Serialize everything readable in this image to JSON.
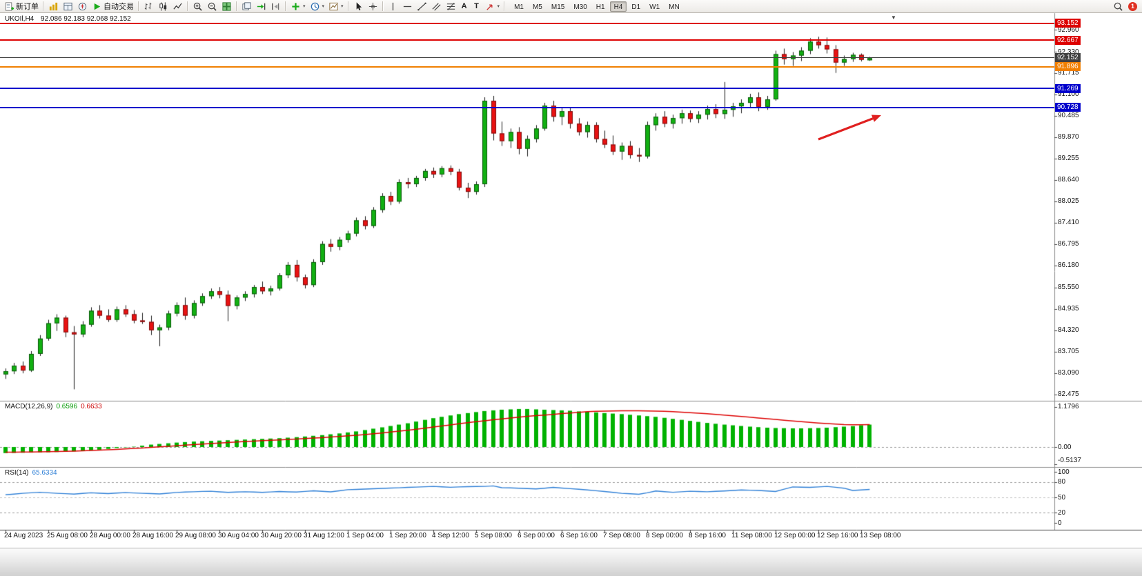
{
  "toolbar": {
    "groups": [
      [
        {
          "name": "new-order-button",
          "icon": "new-order",
          "label": "新订单"
        }
      ],
      [
        {
          "name": "market-watch-button",
          "icon": "market-watch"
        },
        {
          "name": "data-window-button",
          "icon": "data-window"
        },
        {
          "name": "navigator-button",
          "icon": "navigator"
        },
        {
          "name": "autotrading-button",
          "icon": "autotrading",
          "label": "自动交易"
        }
      ],
      [
        {
          "name": "bar-chart-button",
          "icon": "bar-chart"
        },
        {
          "name": "candlestick-chart-button",
          "icon": "candlestick"
        },
        {
          "name": "line-chart-button",
          "icon": "line-chart"
        }
      ],
      [
        {
          "name": "zoom-in-button",
          "icon": "zoom-in"
        },
        {
          "name": "zoom-out-button",
          "icon": "zoom-out"
        },
        {
          "name": "tile-windows-button",
          "icon": "tile-windows"
        }
      ],
      [
        {
          "name": "cascade-windows-button",
          "icon": "cascade-windows"
        },
        {
          "name": "auto-scroll-button",
          "icon": "auto-scroll"
        },
        {
          "name": "chart-shift-button",
          "icon": "chart-shift"
        }
      ],
      [
        {
          "name": "indicators-button",
          "icon": "indicators",
          "dropdown": true
        },
        {
          "name": "periods-button",
          "icon": "periods",
          "dropdown": true
        },
        {
          "name": "templates-button",
          "icon": "templates",
          "dropdown": true
        }
      ],
      [
        {
          "name": "cursor-button",
          "icon": "cursor"
        },
        {
          "name": "crosshair-button",
          "icon": "crosshair"
        }
      ],
      [
        {
          "name": "vertical-line-button",
          "icon": "vline"
        },
        {
          "name": "horizontal-line-button",
          "icon": "hline"
        },
        {
          "name": "trendline-button",
          "icon": "trendline"
        },
        {
          "name": "equidistant-channel-button",
          "icon": "channel"
        },
        {
          "name": "fibonacci-button",
          "icon": "fibonacci"
        },
        {
          "name": "text-button",
          "letter": "A"
        },
        {
          "name": "label-button",
          "letter": "T"
        },
        {
          "name": "arrows-button",
          "icon": "shapes",
          "dropdown": true
        }
      ]
    ],
    "timeframes": [
      "M1",
      "M5",
      "M15",
      "M30",
      "H1",
      "H4",
      "D1",
      "W1",
      "MN"
    ],
    "active_timeframe": "H4",
    "notification_count": "1"
  },
  "chart": {
    "symbol_period_label": "UKOIl,H4",
    "ohlc_label": "92.086 92.183 92.068 92.152"
  },
  "macd_pane": {
    "label": "MACD(12,26,9)",
    "main_value": "0.6596",
    "signal_value": "0.6633"
  },
  "rsi_pane": {
    "label": "RSI(14)",
    "value": "65.6334"
  },
  "chart_data": [
    {
      "type": "candlestick",
      "symbol": "UKOIl",
      "timeframe": "H4",
      "current_bar": {
        "open": 92.086,
        "high": 92.183,
        "low": 92.068,
        "close": 92.152
      },
      "ylim": [
        82.3,
        93.35
      ],
      "colors": {
        "up": "#12b012",
        "down": "#e81212",
        "outline": "#1a1a1a"
      },
      "y_axis_labels": [
        "92.960",
        "92.330",
        "91.715",
        "91.100",
        "90.485",
        "89.870",
        "89.255",
        "88.640",
        "88.025",
        "87.410",
        "86.795",
        "86.180",
        "85.550",
        "84.935",
        "84.320",
        "83.705",
        "83.090",
        "82.475"
      ],
      "x_axis_labels": [
        "24 Aug 2023",
        "25 Aug 08:00",
        "28 Aug 00:00",
        "28 Aug 16:00",
        "29 Aug 08:00",
        "30 Aug 04:00",
        "30 Aug 20:00",
        "31 Aug 12:00",
        "1 Sep 04:00",
        "1 Sep 20:00",
        "4 Sep 12:00",
        "5 Sep 08:00",
        "6 Sep 00:00",
        "6 Sep 16:00",
        "7 Sep 08:00",
        "8 Sep 00:00",
        "8 Sep 16:00",
        "11 Sep 08:00",
        "12 Sep 00:00",
        "12 Sep 16:00",
        "13 Sep 08:00"
      ],
      "levels": [
        {
          "price": 93.152,
          "label": "93.152",
          "color": "#dd0000",
          "width": 2,
          "name": "resistance-line-upper"
        },
        {
          "price": 92.667,
          "label": "92.667",
          "color": "#dd0000",
          "width": 2,
          "name": "resistance-line-lower"
        },
        {
          "price": 92.152,
          "label": "92.152",
          "color": "#404040",
          "width": 1,
          "name": "current-price-line"
        },
        {
          "price": 91.896,
          "label": "91.896",
          "color": "#f07f00",
          "width": 2,
          "name": "support-line-orange"
        },
        {
          "price": 91.269,
          "label": "91.269",
          "color": "#0000cc",
          "width": 2,
          "name": "support-line-blue-1"
        },
        {
          "price": 90.728,
          "label": "90.728",
          "color": "#0000cc",
          "width": 2,
          "name": "support-line-blue-2"
        }
      ],
      "ohlc": [
        [
          83.05,
          83.22,
          82.92,
          83.14
        ],
        [
          83.14,
          83.38,
          83.06,
          83.3
        ],
        [
          83.3,
          83.42,
          83.08,
          83.16
        ],
        [
          83.16,
          83.72,
          83.12,
          83.64
        ],
        [
          83.64,
          84.18,
          83.58,
          84.08
        ],
        [
          84.08,
          84.62,
          84.02,
          84.52
        ],
        [
          84.52,
          84.78,
          84.3,
          84.68
        ],
        [
          84.68,
          84.74,
          84.12,
          84.26
        ],
        [
          84.26,
          84.44,
          82.62,
          84.2
        ],
        [
          84.2,
          84.58,
          84.12,
          84.48
        ],
        [
          84.48,
          84.98,
          84.42,
          84.88
        ],
        [
          84.88,
          85.04,
          84.66,
          84.74
        ],
        [
          84.74,
          84.92,
          84.56,
          84.62
        ],
        [
          84.62,
          85.0,
          84.56,
          84.92
        ],
        [
          84.92,
          85.04,
          84.7,
          84.78
        ],
        [
          84.78,
          84.9,
          84.52,
          84.6
        ],
        [
          84.6,
          84.82,
          84.5,
          84.56
        ],
        [
          84.56,
          84.74,
          84.18,
          84.32
        ],
        [
          84.32,
          84.48,
          83.86,
          84.4
        ],
        [
          84.4,
          84.88,
          84.32,
          84.8
        ],
        [
          84.8,
          85.12,
          84.72,
          85.04
        ],
        [
          85.04,
          85.26,
          84.62,
          84.74
        ],
        [
          84.74,
          85.18,
          84.66,
          85.1
        ],
        [
          85.1,
          85.38,
          85.02,
          85.3
        ],
        [
          85.3,
          85.52,
          85.22,
          85.44
        ],
        [
          85.44,
          85.56,
          85.24,
          85.34
        ],
        [
          85.34,
          85.46,
          84.58,
          85.02
        ],
        [
          85.02,
          85.32,
          84.92,
          85.26
        ],
        [
          85.26,
          85.44,
          85.16,
          85.36
        ],
        [
          85.36,
          85.62,
          85.26,
          85.56
        ],
        [
          85.56,
          85.72,
          85.36,
          85.44
        ],
        [
          85.44,
          85.6,
          85.32,
          85.52
        ],
        [
          85.52,
          85.96,
          85.46,
          85.9
        ],
        [
          85.9,
          86.28,
          85.82,
          86.2
        ],
        [
          86.2,
          86.34,
          85.72,
          85.84
        ],
        [
          85.84,
          85.92,
          85.52,
          85.62
        ],
        [
          85.62,
          86.36,
          85.56,
          86.28
        ],
        [
          86.28,
          86.88,
          86.2,
          86.8
        ],
        [
          86.8,
          86.94,
          86.58,
          86.72
        ],
        [
          86.72,
          87.0,
          86.62,
          86.92
        ],
        [
          86.92,
          87.18,
          86.84,
          87.1
        ],
        [
          87.1,
          87.56,
          87.02,
          87.48
        ],
        [
          87.48,
          87.6,
          87.22,
          87.32
        ],
        [
          87.32,
          87.86,
          87.26,
          87.78
        ],
        [
          87.78,
          88.26,
          87.7,
          88.18
        ],
        [
          88.18,
          88.3,
          87.92,
          88.02
        ],
        [
          88.02,
          88.66,
          87.96,
          88.58
        ],
        [
          88.58,
          88.7,
          88.4,
          88.52
        ],
        [
          88.52,
          88.76,
          88.44,
          88.7
        ],
        [
          88.7,
          88.96,
          88.62,
          88.9
        ],
        [
          88.9,
          89.0,
          88.7,
          88.8
        ],
        [
          88.8,
          89.04,
          88.72,
          88.98
        ],
        [
          88.98,
          89.06,
          88.78,
          88.88
        ],
        [
          88.88,
          88.96,
          88.34,
          88.42
        ],
        [
          88.42,
          88.56,
          88.12,
          88.3
        ],
        [
          88.3,
          88.6,
          88.22,
          88.52
        ],
        [
          88.52,
          91.02,
          88.44,
          90.92
        ],
        [
          90.92,
          91.06,
          89.78,
          89.98
        ],
        [
          89.98,
          90.32,
          89.62,
          89.76
        ],
        [
          89.76,
          90.12,
          89.56,
          90.02
        ],
        [
          90.02,
          90.16,
          89.38,
          89.54
        ],
        [
          89.54,
          89.92,
          89.32,
          89.82
        ],
        [
          89.82,
          90.22,
          89.72,
          90.12
        ],
        [
          90.12,
          90.86,
          90.06,
          90.78
        ],
        [
          90.78,
          90.92,
          90.32,
          90.46
        ],
        [
          90.46,
          90.72,
          90.22,
          90.62
        ],
        [
          90.62,
          90.72,
          90.12,
          90.26
        ],
        [
          90.26,
          90.42,
          89.92,
          90.02
        ],
        [
          90.02,
          90.32,
          89.86,
          90.22
        ],
        [
          90.22,
          90.3,
          89.72,
          89.82
        ],
        [
          89.82,
          90.06,
          89.56,
          89.66
        ],
        [
          89.66,
          89.92,
          89.36,
          89.46
        ],
        [
          89.46,
          89.72,
          89.22,
          89.62
        ],
        [
          89.62,
          89.76,
          89.26,
          89.36
        ],
        [
          89.36,
          89.56,
          89.16,
          89.32
        ],
        [
          89.32,
          90.32,
          89.26,
          90.22
        ],
        [
          90.22,
          90.56,
          90.06,
          90.46
        ],
        [
          90.46,
          90.62,
          90.16,
          90.26
        ],
        [
          90.26,
          90.52,
          90.12,
          90.42
        ],
        [
          90.42,
          90.66,
          90.26,
          90.56
        ],
        [
          90.56,
          90.64,
          90.3,
          90.4
        ],
        [
          90.4,
          90.62,
          90.28,
          90.52
        ],
        [
          90.52,
          90.78,
          90.38,
          90.68
        ],
        [
          90.68,
          90.82,
          90.42,
          90.54
        ],
        [
          90.54,
          91.46,
          90.4,
          90.66
        ],
        [
          90.66,
          90.86,
          90.46,
          90.76
        ],
        [
          90.76,
          90.96,
          90.56,
          90.86
        ],
        [
          90.86,
          91.12,
          90.72,
          91.02
        ],
        [
          91.02,
          91.16,
          90.62,
          90.74
        ],
        [
          90.74,
          91.06,
          90.66,
          90.96
        ],
        [
          90.96,
          92.36,
          90.92,
          92.26
        ],
        [
          92.26,
          92.42,
          91.96,
          92.12
        ],
        [
          92.12,
          92.32,
          91.92,
          92.22
        ],
        [
          92.22,
          92.46,
          92.06,
          92.36
        ],
        [
          92.36,
          92.72,
          92.26,
          92.62
        ],
        [
          92.62,
          92.76,
          92.42,
          92.52
        ],
        [
          92.52,
          92.74,
          92.28,
          92.4
        ],
        [
          92.4,
          92.52,
          91.72,
          92.02
        ],
        [
          92.02,
          92.22,
          91.92,
          92.12
        ],
        [
          92.12,
          92.3,
          92.04,
          92.24
        ],
        [
          92.24,
          92.28,
          92.05,
          92.1
        ],
        [
          92.086,
          92.183,
          92.068,
          92.152
        ]
      ]
    },
    {
      "type": "bar",
      "name": "MACD(12,26,9)",
      "values_label": [
        "0.6596",
        "0.6633"
      ],
      "ylim": [
        -0.5137,
        1.1796
      ],
      "y_axis_labels": [
        "1.1796",
        "0.00",
        "-0.5137"
      ],
      "colors": {
        "histogram": "#00b200",
        "signal": "#dd0000"
      },
      "histogram": [
        -0.18,
        -0.175,
        -0.17,
        -0.165,
        -0.16,
        -0.155,
        -0.148,
        -0.14,
        -0.13,
        -0.12,
        -0.1,
        -0.08,
        -0.055,
        -0.03,
        -0.01,
        0.01,
        0.04,
        0.07,
        0.09,
        0.11,
        0.13,
        0.145,
        0.16,
        0.17,
        0.18,
        0.19,
        0.2,
        0.21,
        0.22,
        0.23,
        0.24,
        0.25,
        0.26,
        0.275,
        0.29,
        0.31,
        0.33,
        0.35,
        0.375,
        0.4,
        0.43,
        0.46,
        0.5,
        0.54,
        0.58,
        0.62,
        0.66,
        0.7,
        0.75,
        0.8,
        0.85,
        0.89,
        0.93,
        0.97,
        1.0,
        1.03,
        1.06,
        1.08,
        1.1,
        1.11,
        1.12,
        1.12,
        1.11,
        1.1,
        1.09,
        1.08,
        1.07,
        1.05,
        1.04,
        1.02,
        1.0,
        0.985,
        0.97,
        0.95,
        0.93,
        0.91,
        0.89,
        0.86,
        0.83,
        0.8,
        0.77,
        0.74,
        0.71,
        0.685,
        0.66,
        0.64,
        0.62,
        0.6,
        0.585,
        0.57,
        0.56,
        0.555,
        0.55,
        0.55,
        0.555,
        0.56,
        0.57,
        0.585,
        0.6,
        0.615,
        0.64,
        0.66
      ],
      "signal": [
        -0.155,
        -0.152,
        -0.149,
        -0.146,
        -0.142,
        -0.138,
        -0.133,
        -0.127,
        -0.12,
        -0.112,
        -0.103,
        -0.093,
        -0.082,
        -0.07,
        -0.057,
        -0.043,
        -0.028,
        -0.012,
        0.004,
        0.021,
        0.038,
        0.055,
        0.072,
        0.088,
        0.104,
        0.119,
        0.134,
        0.148,
        0.161,
        0.174,
        0.186,
        0.198,
        0.21,
        0.222,
        0.235,
        0.248,
        0.262,
        0.277,
        0.293,
        0.31,
        0.328,
        0.347,
        0.368,
        0.39,
        0.414,
        0.44,
        0.467,
        0.495,
        0.525,
        0.556,
        0.588,
        0.62,
        0.652,
        0.684,
        0.715,
        0.745,
        0.774,
        0.802,
        0.829,
        0.855,
        0.88,
        0.903,
        0.924,
        0.943,
        0.96,
        0.985,
        1.0,
        1.02,
        1.04,
        1.05,
        1.06,
        1.065,
        1.068,
        1.07,
        1.068,
        1.064,
        1.058,
        1.05,
        1.04,
        1.028,
        1.014,
        0.998,
        0.98,
        0.96,
        0.94,
        0.92,
        0.9,
        0.878,
        0.856,
        0.834,
        0.812,
        0.79,
        0.768,
        0.747,
        0.727,
        0.708,
        0.69,
        0.674,
        0.66,
        0.655,
        0.657,
        0.6633
      ]
    },
    {
      "type": "line",
      "name": "RSI(14)",
      "value_label": "65.6334",
      "ylim": [
        0,
        100
      ],
      "levels": [
        80,
        50,
        20
      ],
      "y_axis_labels": [
        "100",
        "80",
        "50",
        "20",
        "0"
      ],
      "color": "#2e7fd6",
      "values": [
        55,
        56.5,
        58,
        59,
        60,
        59,
        58,
        57.2,
        56.5,
        57.8,
        59,
        58.2,
        57.5,
        58.5,
        59.3,
        58.6,
        58,
        57.4,
        56.8,
        58.2,
        59.6,
        60.4,
        61,
        61.6,
        62,
        60.9,
        59.8,
        60.4,
        61,
        60.4,
        59.8,
        60.6,
        61.4,
        60.9,
        60.4,
        61.6,
        62.8,
        61.8,
        60.8,
        62.9,
        65,
        65.6,
        66.2,
        66.9,
        67.6,
        68.2,
        68.8,
        69.5,
        70.1,
        70.8,
        71.4,
        70.6,
        69.8,
        70.4,
        71,
        71.3,
        71.5,
        72.5,
        69,
        68.5,
        68,
        67.2,
        66.5,
        68,
        69.5,
        68.2,
        67,
        65.8,
        64.5,
        63,
        61.5,
        59.8,
        58,
        57,
        56,
        59,
        62.5,
        61.2,
        60,
        61,
        62,
        61.5,
        61,
        61.8,
        62.5,
        63.5,
        64.5,
        64,
        63.5,
        62.5,
        61.5,
        66,
        70.5,
        70,
        69.5,
        70.5,
        71.5,
        69.8,
        68,
        63.5,
        64.5,
        65.63
      ]
    }
  ],
  "annotations": {
    "arrow_color": "#e02020"
  }
}
